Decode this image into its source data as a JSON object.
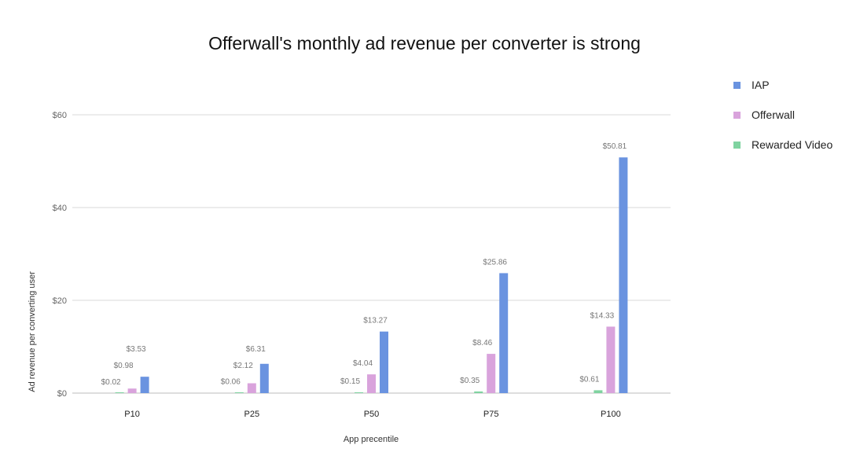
{
  "chart_data": {
    "type": "bar",
    "title": "Offerwall's monthly ad revenue per converter is strong",
    "xlabel": "App precentile",
    "ylabel": "Ad revenue per converting user",
    "categories": [
      "P10",
      "P25",
      "P50",
      "P75",
      "P100"
    ],
    "ylim": [
      0,
      60
    ],
    "yticks": [
      0,
      20,
      40,
      60
    ],
    "ytick_labels": [
      "$0",
      "$20",
      "$40",
      "$60"
    ],
    "grid": true,
    "legend_position": "top-right",
    "series": [
      {
        "name": "Rewarded Video",
        "color": "#7fd3a0",
        "values": [
          0.02,
          0.06,
          0.15,
          0.35,
          0.61
        ],
        "labels": [
          "$0.02",
          "$0.06",
          "$0.15",
          "$0.35",
          "$0.61"
        ]
      },
      {
        "name": "Offerwall",
        "color": "#d9a3dc",
        "values": [
          0.98,
          2.12,
          4.04,
          8.46,
          14.33
        ],
        "labels": [
          "$0.98",
          "$2.12",
          "$4.04",
          "$8.46",
          "$14.33"
        ]
      },
      {
        "name": "IAP",
        "color": "#6a93e0",
        "values": [
          3.53,
          6.31,
          13.27,
          25.86,
          50.81
        ],
        "labels": [
          "$3.53",
          "$6.31",
          "$13.27",
          "$25.86",
          "$50.81"
        ]
      }
    ],
    "legend_order": [
      "IAP",
      "Offerwall",
      "Rewarded Video"
    ]
  }
}
